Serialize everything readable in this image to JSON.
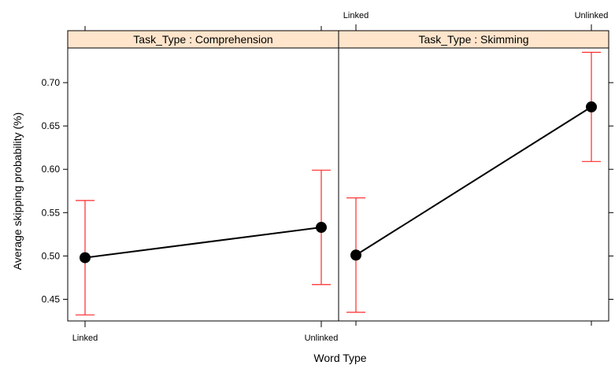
{
  "chart_data": {
    "type": "line",
    "ylabel": "Average skipping probability (%)",
    "xlabel": "Word Type",
    "categories": [
      "Linked",
      "Unlinked"
    ],
    "ylim": [
      0.425,
      0.74
    ],
    "yticks": [
      0.45,
      0.5,
      0.55,
      0.6,
      0.65,
      0.7
    ],
    "ytick_labels": [
      "0.45",
      "0.50",
      "0.55",
      "0.60",
      "0.65",
      "0.70"
    ],
    "panels": [
      {
        "strip": "Task_Type : Comprehension",
        "points": [
          {
            "category": "Linked",
            "y": 0.498,
            "lower": 0.432,
            "upper": 0.564
          },
          {
            "category": "Unlinked",
            "y": 0.533,
            "lower": 0.467,
            "upper": 0.599
          }
        ]
      },
      {
        "strip": "Task_Type : Skimming",
        "points": [
          {
            "category": "Linked",
            "y": 0.501,
            "lower": 0.435,
            "upper": 0.567
          },
          {
            "category": "Unlinked",
            "y": 0.672,
            "lower": 0.609,
            "upper": 0.735
          }
        ]
      }
    ],
    "colors": {
      "strip_fill": "#ffe5cc",
      "errorbar": "#ff2a2a",
      "line": "#000000",
      "point": "#000000"
    },
    "grid": false
  }
}
